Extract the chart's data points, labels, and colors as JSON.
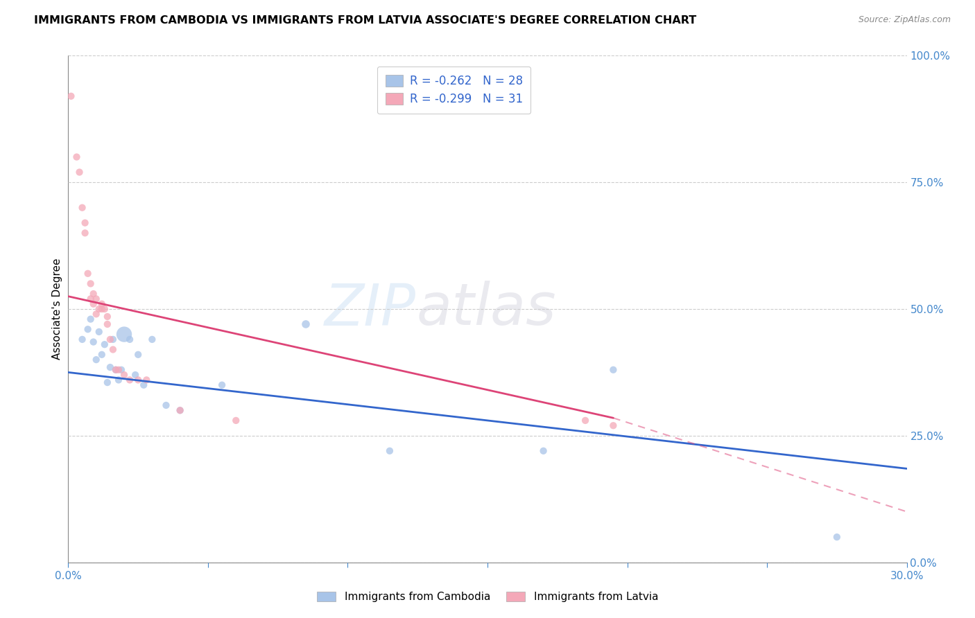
{
  "title": "IMMIGRANTS FROM CAMBODIA VS IMMIGRANTS FROM LATVIA ASSOCIATE'S DEGREE CORRELATION CHART",
  "source": "Source: ZipAtlas.com",
  "ylabel": "Associate's Degree",
  "xlim": [
    0.0,
    0.3
  ],
  "ylim": [
    0.0,
    1.0
  ],
  "xticks": [
    0.0,
    0.05,
    0.1,
    0.15,
    0.2,
    0.25,
    0.3
  ],
  "yticks": [
    0.0,
    0.25,
    0.5,
    0.75,
    1.0
  ],
  "xtick_labels": [
    "0.0%",
    "",
    "",
    "",
    "",
    "",
    "30.0%"
  ],
  "ytick_labels_right": [
    "0.0%",
    "25.0%",
    "50.0%",
    "75.0%",
    "100.0%"
  ],
  "cambodia_color": "#A8C4E8",
  "latvia_color": "#F4A8B8",
  "cambodia_R": -0.262,
  "cambodia_N": 28,
  "latvia_R": -0.299,
  "latvia_N": 31,
  "cambodia_line_color": "#3366CC",
  "latvia_line_color": "#DD4477",
  "legend_label_cambodia": "Immigrants from Cambodia",
  "legend_label_latvia": "Immigrants from Latvia",
  "cambodia_line_x0": 0.0,
  "cambodia_line_y0": 0.375,
  "cambodia_line_x1": 0.3,
  "cambodia_line_y1": 0.185,
  "latvia_line_x0": 0.0,
  "latvia_line_y0": 0.525,
  "latvia_line_x1": 0.195,
  "latvia_line_y1": 0.285,
  "latvia_line_dash_x1": 0.3,
  "latvia_line_dash_y1": 0.1,
  "cambodia_x": [
    0.005,
    0.007,
    0.008,
    0.009,
    0.01,
    0.011,
    0.012,
    0.013,
    0.014,
    0.015,
    0.016,
    0.017,
    0.018,
    0.019,
    0.02,
    0.022,
    0.024,
    0.025,
    0.027,
    0.03,
    0.035,
    0.04,
    0.055,
    0.085,
    0.115,
    0.17,
    0.195,
    0.275
  ],
  "cambodia_y": [
    0.44,
    0.46,
    0.48,
    0.435,
    0.4,
    0.455,
    0.41,
    0.43,
    0.355,
    0.385,
    0.44,
    0.38,
    0.36,
    0.38,
    0.45,
    0.44,
    0.37,
    0.41,
    0.35,
    0.44,
    0.31,
    0.3,
    0.35,
    0.47,
    0.22,
    0.22,
    0.38,
    0.05
  ],
  "cambodia_sizes": [
    55,
    55,
    55,
    55,
    55,
    55,
    55,
    55,
    55,
    55,
    55,
    55,
    55,
    55,
    260,
    55,
    55,
    55,
    55,
    55,
    55,
    55,
    55,
    70,
    55,
    55,
    55,
    55
  ],
  "latvia_x": [
    0.001,
    0.003,
    0.004,
    0.005,
    0.006,
    0.006,
    0.007,
    0.008,
    0.008,
    0.009,
    0.009,
    0.01,
    0.01,
    0.011,
    0.012,
    0.012,
    0.013,
    0.014,
    0.014,
    0.015,
    0.016,
    0.017,
    0.018,
    0.02,
    0.022,
    0.025,
    0.028,
    0.04,
    0.06,
    0.185,
    0.195
  ],
  "latvia_y": [
    0.92,
    0.8,
    0.77,
    0.7,
    0.67,
    0.65,
    0.57,
    0.55,
    0.52,
    0.53,
    0.51,
    0.52,
    0.49,
    0.5,
    0.5,
    0.51,
    0.5,
    0.47,
    0.485,
    0.44,
    0.42,
    0.38,
    0.38,
    0.37,
    0.36,
    0.36,
    0.36,
    0.3,
    0.28,
    0.28,
    0.27
  ],
  "latvia_sizes": [
    55,
    55,
    55,
    55,
    55,
    55,
    55,
    55,
    55,
    55,
    55,
    55,
    55,
    55,
    55,
    55,
    55,
    55,
    55,
    55,
    55,
    55,
    55,
    55,
    55,
    55,
    55,
    55,
    55,
    55,
    55
  ]
}
